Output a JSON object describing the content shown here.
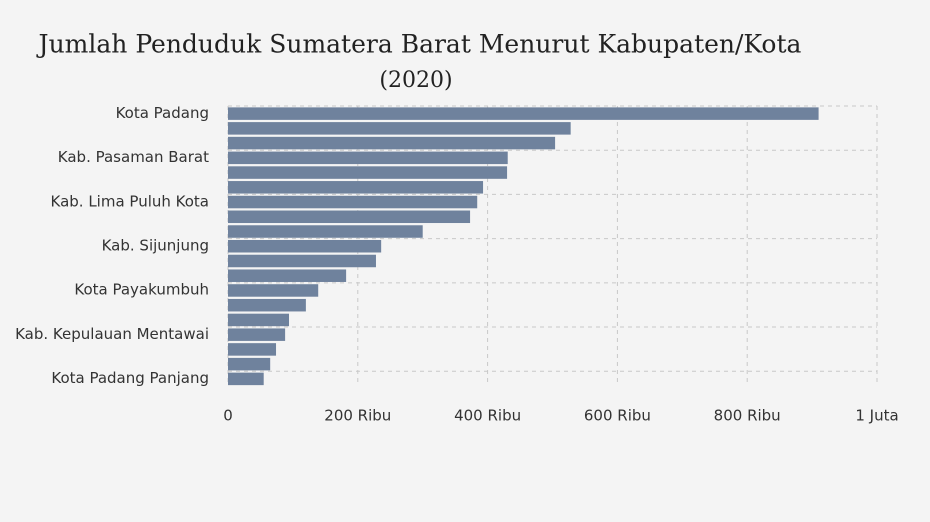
{
  "chart_data": {
    "type": "hbar",
    "title": "Jumlah Penduduk Sumatera Barat Menurut Kabupaten/Kota",
    "subtitle": "(2020)",
    "categories": [
      "Kota Padang",
      null,
      null,
      "Kab. Pasaman Barat",
      null,
      null,
      "Kab. Lima Puluh Kota",
      null,
      null,
      "Kab. Sijunjung",
      null,
      null,
      "Kota Payakumbuh",
      null,
      null,
      "Kab. Kepulauan Mentawai",
      null,
      null,
      "Kota Padang Panjang"
    ],
    "values": [
      910000,
      528000,
      504000,
      431000,
      430000,
      393000,
      384000,
      373000,
      300000,
      236000,
      228000,
      182000,
      139000,
      120000,
      94000,
      88000,
      74000,
      65000,
      55000
    ],
    "color": "#6f829d",
    "xlim": [
      0,
      1000000
    ],
    "xticks": [
      0,
      {
        "value": 200000,
        "label": "200 Ribu"
      },
      {
        "value": 400000,
        "label": "400 Ribu"
      },
      {
        "value": 600000,
        "label": "600 Ribu"
      },
      {
        "value": 800000,
        "label": "800 Ribu"
      },
      {
        "value": 1000000,
        "label": "1 Juta"
      }
    ],
    "grid": true
  }
}
